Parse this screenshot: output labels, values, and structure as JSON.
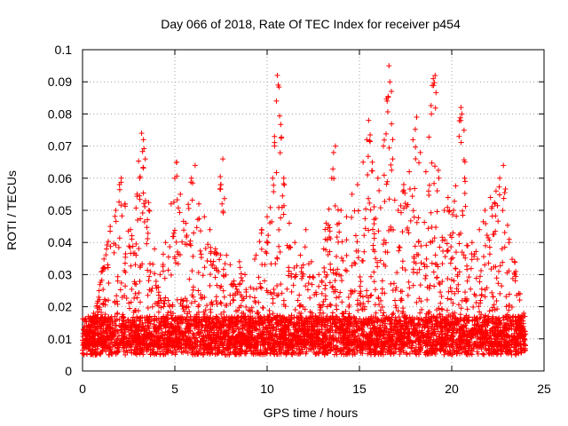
{
  "chart_data": {
    "type": "scatter",
    "title": "Day 066 of 2018, Rate Of TEC Index for receiver p454",
    "xlabel": "GPS time / hours",
    "ylabel": "ROTI / TECUs",
    "xlim": [
      0,
      25
    ],
    "ylim": [
      0,
      0.1
    ],
    "xticks": [
      0,
      5,
      10,
      15,
      20,
      25
    ],
    "xtick_labels": [
      "0",
      "5",
      "10",
      "15",
      "20",
      "25"
    ],
    "yticks": [
      0,
      0.01,
      0.02,
      0.03,
      0.04,
      0.05,
      0.06,
      0.07,
      0.08,
      0.09,
      0.1
    ],
    "ytick_labels": [
      "0",
      "0.01",
      "0.02",
      "0.03",
      "0.04",
      "0.05",
      "0.06",
      "0.07",
      "0.08",
      "0.09",
      "0.1"
    ],
    "grid": true,
    "marker": "+",
    "marker_color": "#ff0000",
    "data_x_range": [
      0,
      24
    ],
    "series": [
      {
        "name": "ROTI",
        "points": [
          [
            0.3,
            0.012
          ],
          [
            0.6,
            0.018
          ],
          [
            0.9,
            0.025
          ],
          [
            1.1,
            0.032
          ],
          [
            1.3,
            0.038
          ],
          [
            1.5,
            0.045
          ],
          [
            1.8,
            0.05
          ],
          [
            2.0,
            0.058
          ],
          [
            2.1,
            0.06
          ],
          [
            2.3,
            0.052
          ],
          [
            2.6,
            0.044
          ],
          [
            2.9,
            0.036
          ],
          [
            3.1,
            0.06
          ],
          [
            3.2,
            0.074
          ],
          [
            3.3,
            0.072
          ],
          [
            3.4,
            0.066
          ],
          [
            3.6,
            0.05
          ],
          [
            3.9,
            0.038
          ],
          [
            4.2,
            0.03
          ],
          [
            4.5,
            0.04
          ],
          [
            4.8,
            0.052
          ],
          [
            5.0,
            0.06
          ],
          [
            5.1,
            0.065
          ],
          [
            5.3,
            0.055
          ],
          [
            5.6,
            0.046
          ],
          [
            5.9,
            0.06
          ],
          [
            6.1,
            0.064
          ],
          [
            6.3,
            0.052
          ],
          [
            6.6,
            0.048
          ],
          [
            6.9,
            0.044
          ],
          [
            7.2,
            0.038
          ],
          [
            7.5,
            0.058
          ],
          [
            7.6,
            0.066
          ],
          [
            7.8,
            0.036
          ],
          [
            8.2,
            0.028
          ],
          [
            8.5,
            0.034
          ],
          [
            8.8,
            0.03
          ],
          [
            9.1,
            0.026
          ],
          [
            9.4,
            0.036
          ],
          [
            9.7,
            0.044
          ],
          [
            10.0,
            0.048
          ],
          [
            10.3,
            0.06
          ],
          [
            10.4,
            0.073
          ],
          [
            10.5,
            0.084
          ],
          [
            10.55,
            0.092
          ],
          [
            10.6,
            0.089
          ],
          [
            10.9,
            0.06
          ],
          [
            11.2,
            0.046
          ],
          [
            11.5,
            0.04
          ],
          [
            11.8,
            0.036
          ],
          [
            12.1,
            0.044
          ],
          [
            12.4,
            0.034
          ],
          [
            12.8,
            0.03
          ],
          [
            13.2,
            0.046
          ],
          [
            13.5,
            0.06
          ],
          [
            13.6,
            0.068
          ],
          [
            13.7,
            0.07
          ],
          [
            14.0,
            0.05
          ],
          [
            14.3,
            0.048
          ],
          [
            14.6,
            0.055
          ],
          [
            14.9,
            0.058
          ],
          [
            15.2,
            0.065
          ],
          [
            15.4,
            0.072
          ],
          [
            15.5,
            0.078
          ],
          [
            15.7,
            0.065
          ],
          [
            16.0,
            0.06
          ],
          [
            16.3,
            0.07
          ],
          [
            16.5,
            0.084
          ],
          [
            16.6,
            0.095
          ],
          [
            16.65,
            0.09
          ],
          [
            16.8,
            0.066
          ],
          [
            17.1,
            0.05
          ],
          [
            17.4,
            0.058
          ],
          [
            17.7,
            0.062
          ],
          [
            17.9,
            0.072
          ],
          [
            18.1,
            0.079
          ],
          [
            18.3,
            0.068
          ],
          [
            18.6,
            0.062
          ],
          [
            18.9,
            0.08
          ],
          [
            19.0,
            0.091
          ],
          [
            19.1,
            0.092
          ],
          [
            19.3,
            0.06
          ],
          [
            19.6,
            0.05
          ],
          [
            19.8,
            0.054
          ],
          [
            20.1,
            0.05
          ],
          [
            20.4,
            0.073
          ],
          [
            20.5,
            0.082
          ],
          [
            20.55,
            0.08
          ],
          [
            20.7,
            0.06
          ],
          [
            21.1,
            0.04
          ],
          [
            21.5,
            0.044
          ],
          [
            21.8,
            0.05
          ],
          [
            22.1,
            0.054
          ],
          [
            22.4,
            0.056
          ],
          [
            22.6,
            0.06
          ],
          [
            22.8,
            0.064
          ],
          [
            23.1,
            0.04
          ],
          [
            23.4,
            0.034
          ],
          [
            23.7,
            0.024
          ],
          [
            23.9,
            0.018
          ]
        ]
      }
    ]
  }
}
